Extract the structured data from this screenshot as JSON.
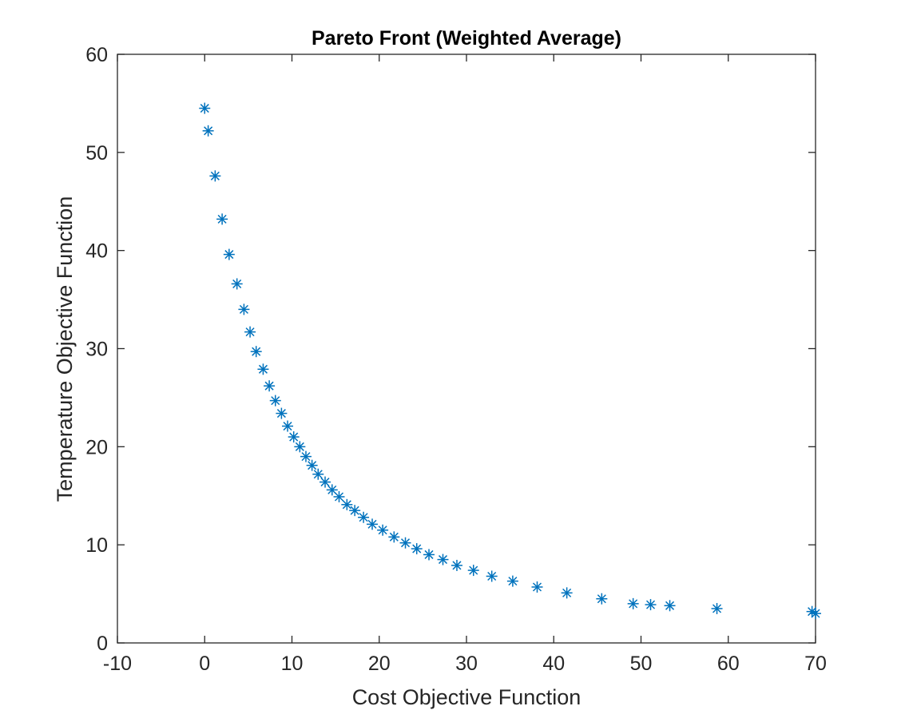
{
  "chart_data": {
    "type": "scatter",
    "title": "Pareto Front (Weighted Average)",
    "xlabel": "Cost Objective Function",
    "ylabel": "Temperature Objective Function",
    "xlim": [
      -10,
      70
    ],
    "ylim": [
      0,
      60
    ],
    "xticks": [
      -10,
      0,
      10,
      20,
      30,
      40,
      50,
      60,
      70
    ],
    "yticks": [
      0,
      10,
      20,
      30,
      40,
      50,
      60
    ],
    "grid": false,
    "marker": "asterisk",
    "color": "#0072bd",
    "series": [
      {
        "points": [
          [
            0.0,
            54.5
          ],
          [
            0.4,
            52.2
          ],
          [
            1.2,
            47.6
          ],
          [
            2.0,
            43.2
          ],
          [
            2.8,
            39.6
          ],
          [
            3.7,
            36.6
          ],
          [
            4.5,
            34.0
          ],
          [
            5.2,
            31.7
          ],
          [
            5.9,
            29.7
          ],
          [
            6.7,
            27.9
          ],
          [
            7.4,
            26.2
          ],
          [
            8.1,
            24.7
          ],
          [
            8.8,
            23.4
          ],
          [
            9.5,
            22.1
          ],
          [
            10.2,
            21.0
          ],
          [
            10.9,
            20.0
          ],
          [
            11.6,
            19.0
          ],
          [
            12.3,
            18.1
          ],
          [
            13.0,
            17.2
          ],
          [
            13.8,
            16.4
          ],
          [
            14.6,
            15.6
          ],
          [
            15.4,
            14.9
          ],
          [
            16.3,
            14.1
          ],
          [
            17.2,
            13.5
          ],
          [
            18.2,
            12.8
          ],
          [
            19.2,
            12.1
          ],
          [
            20.4,
            11.5
          ],
          [
            21.7,
            10.8
          ],
          [
            23.0,
            10.2
          ],
          [
            24.3,
            9.6
          ],
          [
            25.7,
            9.0
          ],
          [
            27.3,
            8.5
          ],
          [
            28.9,
            7.9
          ],
          [
            30.8,
            7.4
          ],
          [
            32.9,
            6.8
          ],
          [
            35.3,
            6.3
          ],
          [
            38.1,
            5.7
          ],
          [
            41.5,
            5.1
          ],
          [
            45.5,
            4.5
          ],
          [
            49.1,
            4.0
          ],
          [
            51.1,
            3.9
          ],
          [
            53.3,
            3.8
          ],
          [
            58.7,
            3.5
          ],
          [
            69.6,
            3.2
          ],
          [
            70.0,
            3.0
          ]
        ]
      }
    ]
  }
}
